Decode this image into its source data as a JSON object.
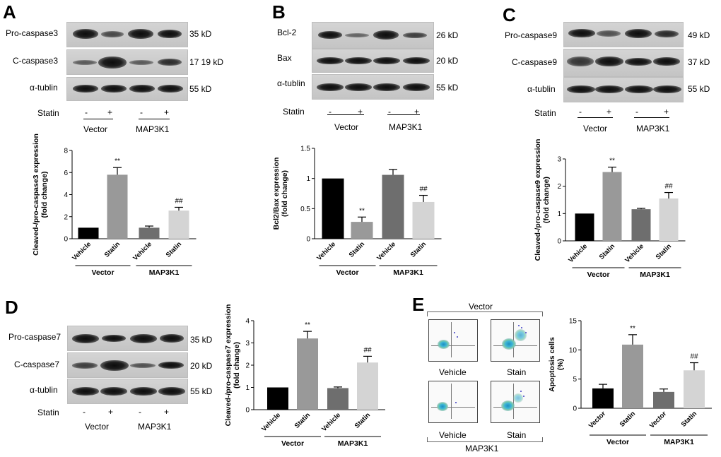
{
  "panels": {
    "A": {
      "label": "A",
      "rows": [
        "Pro-caspase3",
        "C-caspase3",
        "α-tublin"
      ],
      "kd": [
        "35 kD",
        "17 19 kD",
        "55 kD"
      ],
      "statin_label": "Statin",
      "signs": [
        "-",
        "+",
        "-",
        "+"
      ],
      "groups": [
        "Vector",
        "MAP3K1"
      ]
    },
    "B": {
      "label": "B",
      "rows": [
        "Bcl-2",
        "Bax",
        "α-tublin"
      ],
      "kd": [
        "26 kD",
        "20 kD",
        "55 kD"
      ],
      "statin_label": "Statin",
      "signs": [
        "-",
        "+",
        "-",
        "+"
      ],
      "groups": [
        "Vector",
        "MAP3K1"
      ]
    },
    "C": {
      "label": "C",
      "rows": [
        "Pro-caspase9",
        "C-caspase9",
        "α-tublin"
      ],
      "kd": [
        "49 kD",
        "37 kD",
        "55 kD"
      ],
      "statin_label": "Statin",
      "signs": [
        "-",
        "+",
        "-",
        "+"
      ],
      "groups": [
        "Vector",
        "MAP3K1"
      ]
    },
    "D": {
      "label": "D",
      "rows": [
        "Pro-caspase7",
        "C-caspase7",
        "α-tublin"
      ],
      "kd": [
        "35 kD",
        "20 kD",
        "55 kD"
      ],
      "statin_label": "Statin",
      "signs": [
        "-",
        "+",
        "-",
        "+"
      ],
      "groups": [
        "Vector",
        "MAP3K1"
      ]
    },
    "E": {
      "label": "E",
      "flow_top_title": "Vector",
      "flow_bottom_title": "MAP3K1",
      "flow_labels": [
        "Vehicle",
        "Stain",
        "Vehicle",
        "Stain"
      ]
    }
  },
  "chart_data": [
    {
      "id": "A",
      "type": "bar",
      "categories": [
        "Vehicle",
        "Statin",
        "Vehicle",
        "Statin"
      ],
      "groups": [
        "Vector",
        "MAP3K1"
      ],
      "values": [
        1.0,
        5.8,
        1.0,
        2.55
      ],
      "errors": [
        0,
        0.65,
        0.15,
        0.3
      ],
      "annotations": [
        "",
        "**",
        "",
        "##"
      ],
      "colors": [
        "#000000",
        "#999999",
        "#6e6e6e",
        "#d4d4d4"
      ],
      "ylabel": "Cleaved-/pro-caspase3 expression\n(fold change)",
      "ylim": [
        0,
        8
      ],
      "yticks": [
        0,
        2,
        4,
        6,
        8
      ]
    },
    {
      "id": "B",
      "type": "bar",
      "categories": [
        "Vehicle",
        "Statin",
        "Vehicle",
        "Statin"
      ],
      "groups": [
        "Vector",
        "MAP3K1"
      ],
      "values": [
        1.0,
        0.28,
        1.06,
        0.61
      ],
      "errors": [
        0,
        0.08,
        0.09,
        0.11
      ],
      "annotations": [
        "",
        "**",
        "",
        "##"
      ],
      "colors": [
        "#000000",
        "#999999",
        "#6e6e6e",
        "#d4d4d4"
      ],
      "ylabel": "Bcl2/Bax expression\n(fold change)",
      "ylim": [
        0,
        1.5
      ],
      "yticks": [
        0.0,
        0.5,
        1.0,
        1.5
      ]
    },
    {
      "id": "C",
      "type": "bar",
      "categories": [
        "Vehicle",
        "Statin",
        "Vehicle",
        "Statin"
      ],
      "groups": [
        "Vector",
        "MAP3K1"
      ],
      "values": [
        1.0,
        2.52,
        1.16,
        1.55
      ],
      "errors": [
        0,
        0.18,
        0.03,
        0.22
      ],
      "annotations": [
        "",
        "**",
        "",
        "##"
      ],
      "colors": [
        "#000000",
        "#999999",
        "#6e6e6e",
        "#d4d4d4"
      ],
      "ylabel": "Cleaved-/pro-caspase9 expression\n(fold change)",
      "ylim": [
        0,
        3
      ],
      "yticks": [
        0,
        1,
        2,
        3
      ]
    },
    {
      "id": "D",
      "type": "bar",
      "categories": [
        "Vehicle",
        "Statin",
        "Vehicle",
        "Statin"
      ],
      "groups": [
        "Vector",
        "MAP3K1"
      ],
      "values": [
        1.0,
        3.2,
        0.97,
        2.12
      ],
      "errors": [
        0,
        0.32,
        0.05,
        0.28
      ],
      "annotations": [
        "",
        "**",
        "",
        "##"
      ],
      "colors": [
        "#000000",
        "#999999",
        "#6e6e6e",
        "#d4d4d4"
      ],
      "ylabel": "Cleaved-/pro-caspase7 expression\n(fold change)",
      "ylim": [
        0,
        4
      ],
      "yticks": [
        0,
        1,
        2,
        3,
        4
      ]
    },
    {
      "id": "E",
      "type": "bar",
      "categories": [
        "Vector",
        "Statin",
        "Vector",
        "Statin"
      ],
      "groups": [
        "Vector",
        "MAP3K1"
      ],
      "values": [
        3.4,
        10.9,
        2.8,
        6.5
      ],
      "errors": [
        0.7,
        1.7,
        0.5,
        1.3
      ],
      "annotations": [
        "",
        "**",
        "",
        "##"
      ],
      "colors": [
        "#000000",
        "#999999",
        "#6e6e6e",
        "#d4d4d4"
      ],
      "ylabel": "Apoptosis cells\n(%)",
      "ylim": [
        0,
        15
      ],
      "yticks": [
        0,
        5,
        10,
        15
      ]
    }
  ]
}
